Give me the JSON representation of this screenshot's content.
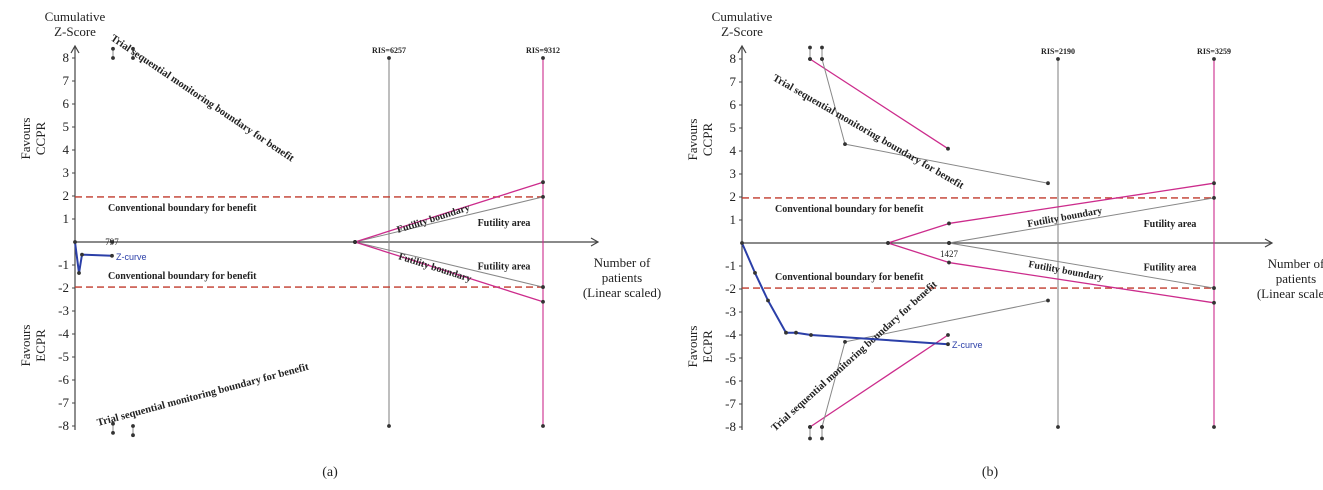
{
  "chart_data": [
    {
      "type": "line",
      "panel_label": "(a)",
      "y_title": [
        "Cumulative",
        "Z-Score"
      ],
      "x_title": [
        "Number of",
        "patients",
        "(Linear scaled)"
      ],
      "favours_top": [
        "Favours",
        "CCPR"
      ],
      "favours_bottom": [
        "Favours",
        "ECPR"
      ],
      "yticks": [
        "8",
        "7",
        "6",
        "5",
        "4",
        "3",
        "2",
        "1",
        "-1",
        "-2",
        "-3",
        "-4",
        "-5",
        "-6",
        "-7",
        "-8"
      ],
      "ylim": [
        -8,
        8
      ],
      "x_marker": "797",
      "ris": [
        {
          "label": "RIS=6257",
          "color": "#888888"
        },
        {
          "label": "RIS=9312",
          "color": "#cc2c8c"
        }
      ],
      "labels": {
        "conv_upper": "Conventional boundary for benefit",
        "conv_lower": "Conventional boundary for benefit",
        "futility_upper": "Futility boundary",
        "futility_lower": "Futility boundary",
        "futility_area_upper": "Futility area",
        "futility_area_lower": "Futility area",
        "tsm_upper": "Trial sequential monitoring boundary for benefit",
        "tsm_lower": "Trial sequential monitoring boundary for benefit",
        "zcurve": "Z-curve"
      },
      "conventional_boundary": 1.96,
      "zcurve_values": [
        0,
        -1.35,
        -0.55,
        -0.6
      ],
      "colors": {
        "zcurve": "#2b3fa8",
        "boundary": "#cc2c8c",
        "conventional": "#c0392b",
        "gray": "#888888"
      }
    },
    {
      "type": "line",
      "panel_label": "(b)",
      "y_title": [
        "Cumulative",
        "Z-Score"
      ],
      "x_title": [
        "Number of",
        "patients",
        "(Linear scaled)"
      ],
      "favours_top": [
        "Favours",
        "CCPR"
      ],
      "favours_bottom": [
        "Favours",
        "ECPR"
      ],
      "yticks": [
        "8",
        "7",
        "6",
        "5",
        "4",
        "3",
        "2",
        "1",
        "-1",
        "-2",
        "-3",
        "-4",
        "-5",
        "-6",
        "-7",
        "-8"
      ],
      "ylim": [
        -8,
        8
      ],
      "x_marker": "1427",
      "ris": [
        {
          "label": "RIS=2190",
          "color": "#888888"
        },
        {
          "label": "RIS=3259",
          "color": "#cc2c8c"
        }
      ],
      "labels": {
        "conv_upper": "Conventional boundary for benefit",
        "conv_lower": "Conventional boundary for benefit",
        "futility_upper": "Futility boundary",
        "futility_lower": "Futility boundary",
        "futility_area_upper": "Futility area",
        "futility_area_lower": "Futility area",
        "tsm_upper": "Trial sequential monitoring boundary for benefit",
        "tsm_lower": "Trial sequential monitoring boundary for benefit",
        "zcurve": "Z-curve"
      },
      "conventional_boundary": 1.96,
      "zcurve_values": [
        0,
        -1.3,
        -2.5,
        -3.9,
        -3.9,
        -4.0,
        -4.4
      ],
      "colors": {
        "zcurve": "#2b3fa8",
        "boundary": "#cc2c8c",
        "conventional": "#c0392b",
        "gray": "#888888"
      }
    }
  ]
}
